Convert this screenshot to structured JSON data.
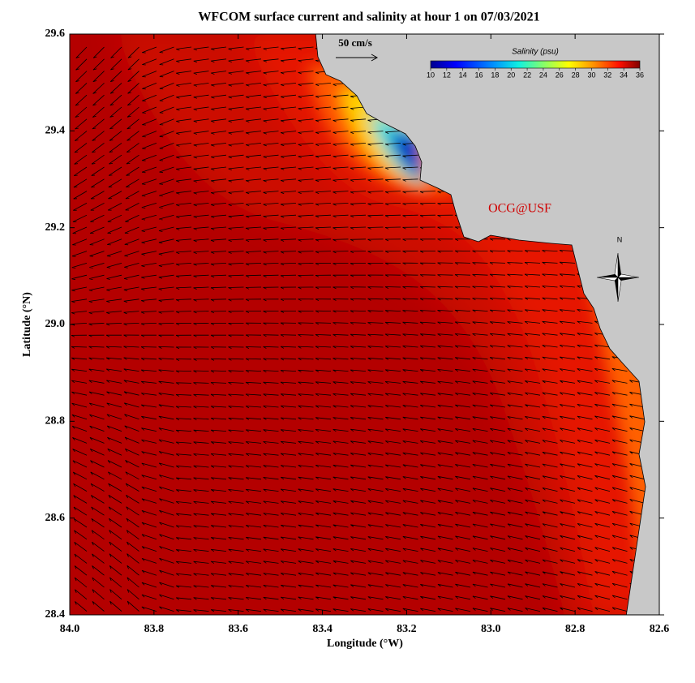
{
  "map": {
    "title": "WFCOM surface current and salinity at hour 1 on 07/03/2021",
    "xlabel": "Longitude (°W)",
    "ylabel": "Latitude (°N)",
    "xlim": [
      84,
      82.6
    ],
    "ylim": [
      28.4,
      29.6
    ],
    "xticks": [
      {
        "value": 84,
        "label": "84.0"
      },
      83.8,
      83.6,
      83.4,
      83.2,
      {
        "value": 83,
        "label": "83.0"
      },
      82.8,
      82.6
    ],
    "yticks": [
      28.4,
      28.6,
      28.8,
      {
        "value": 29,
        "label": "29.0"
      },
      29.2,
      29.4,
      29.6
    ],
    "colorbar": {
      "label": "Salinity (psu)",
      "lim": [
        10,
        36
      ],
      "ticks": [
        10,
        12,
        14,
        16,
        18,
        20,
        22,
        24,
        26,
        28,
        30,
        32,
        34,
        36
      ]
    },
    "scale_label": "50 cm/s",
    "credit": "OCG@USF",
    "compass": "N"
  }
}
